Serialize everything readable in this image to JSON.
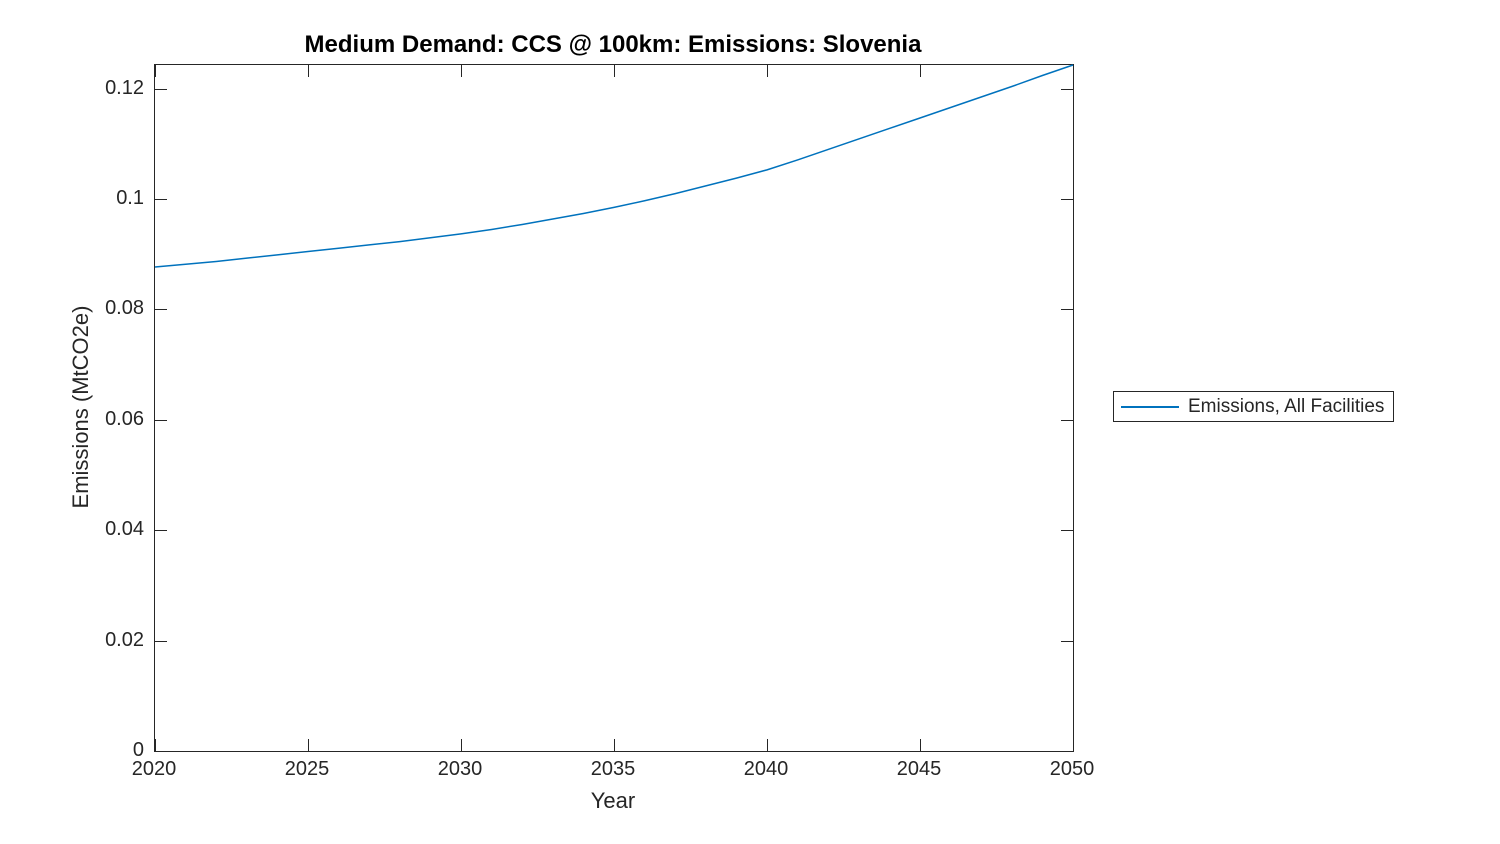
{
  "chart_data": {
    "type": "line",
    "title": "Medium Demand: CCS @ 100km: Emissions: Slovenia",
    "xlabel": "Year",
    "ylabel": "Emissions (MtCO2e)",
    "xlim": [
      2020,
      2050
    ],
    "ylim": [
      0,
      0.1243
    ],
    "x_ticks": [
      2020,
      2025,
      2030,
      2035,
      2040,
      2045,
      2050
    ],
    "x_tick_labels": [
      "2020",
      "2025",
      "2030",
      "2035",
      "2040",
      "2045",
      "2050"
    ],
    "y_ticks": [
      0,
      0.02,
      0.04,
      0.06,
      0.08,
      0.1,
      0.12
    ],
    "y_tick_labels": [
      "0",
      "0.02",
      "0.04",
      "0.06",
      "0.08",
      "0.1",
      "0.12"
    ],
    "grid": false,
    "box": true,
    "tick_direction": "in",
    "legend_position": "outside-right",
    "line_color": "#0072BD",
    "axis_color": "#262626",
    "series": [
      {
        "name": "Emissions, All Facilities",
        "x": [
          2020,
          2021,
          2022,
          2023,
          2024,
          2025,
          2026,
          2027,
          2028,
          2029,
          2030,
          2031,
          2032,
          2033,
          2034,
          2035,
          2036,
          2037,
          2038,
          2039,
          2040,
          2041,
          2042,
          2043,
          2044,
          2045,
          2046,
          2047,
          2048,
          2049,
          2050
        ],
        "values": [
          0.0877,
          0.0882,
          0.0887,
          0.0893,
          0.0899,
          0.0905,
          0.0911,
          0.0917,
          0.0923,
          0.093,
          0.0937,
          0.0945,
          0.0954,
          0.0964,
          0.0974,
          0.0985,
          0.0997,
          0.101,
          0.1024,
          0.1038,
          0.1053,
          0.1071,
          0.109,
          0.1109,
          0.1128,
          0.1147,
          0.1166,
          0.1185,
          0.1204,
          0.1224,
          0.1243
        ]
      }
    ]
  }
}
